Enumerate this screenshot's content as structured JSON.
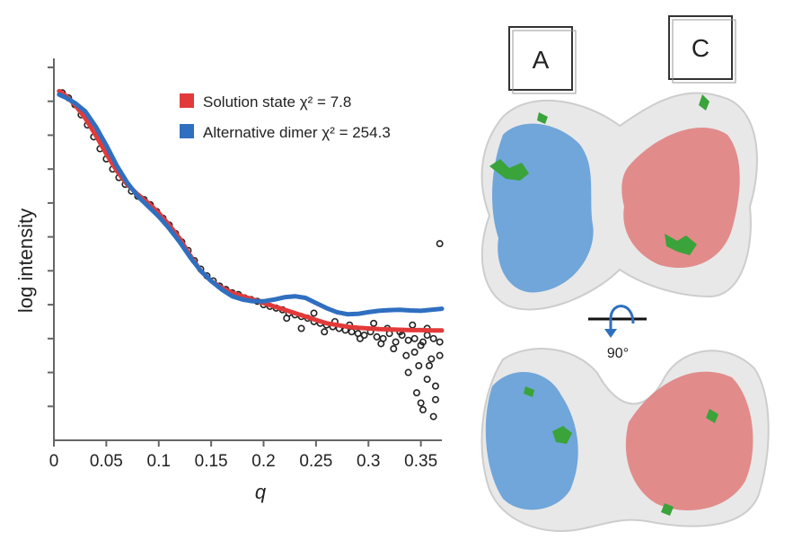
{
  "chart_data": {
    "type": "scatter",
    "xlabel": "q",
    "ylabel": "log intensity",
    "xlim": [
      0,
      0.37
    ],
    "ylim": [
      0,
      11
    ],
    "xticks": [
      "0",
      "0.05",
      "0.1",
      "0.15",
      "0.2",
      "0.25",
      "0.3",
      "0.35"
    ],
    "xtick_values": [
      0,
      0.05,
      0.1,
      0.15,
      0.2,
      0.25,
      0.3,
      0.35
    ],
    "ytick_values": [
      1,
      2,
      3,
      4,
      5,
      6,
      7,
      8,
      9,
      10,
      11
    ],
    "series": [
      {
        "name": "Solution state",
        "chi2": "χ² = 7.8",
        "color": "#e23a3a",
        "x": [
          0.005,
          0.012,
          0.02,
          0.03,
          0.04,
          0.05,
          0.06,
          0.07,
          0.08,
          0.09,
          0.1,
          0.11,
          0.12,
          0.13,
          0.14,
          0.15,
          0.16,
          0.17,
          0.18,
          0.19,
          0.2,
          0.21,
          0.22,
          0.23,
          0.24,
          0.25,
          0.26,
          0.27,
          0.28,
          0.29,
          0.3,
          0.31,
          0.32,
          0.33,
          0.34,
          0.35,
          0.36,
          0.37
        ],
        "y": [
          10.3,
          10.15,
          9.9,
          9.5,
          9.0,
          8.45,
          7.95,
          7.55,
          7.25,
          7.0,
          6.7,
          6.35,
          5.95,
          5.45,
          5.0,
          4.7,
          4.5,
          4.35,
          4.25,
          4.15,
          4.05,
          3.95,
          3.85,
          3.75,
          3.65,
          3.55,
          3.45,
          3.4,
          3.35,
          3.32,
          3.3,
          3.28,
          3.27,
          3.26,
          3.25,
          3.25,
          3.24,
          3.24
        ]
      },
      {
        "name": "Alternative dimer",
        "chi2": "χ² = 254.3",
        "color": "#2f6fc0",
        "x": [
          0.005,
          0.012,
          0.02,
          0.03,
          0.04,
          0.05,
          0.06,
          0.07,
          0.08,
          0.09,
          0.1,
          0.11,
          0.12,
          0.13,
          0.14,
          0.15,
          0.16,
          0.17,
          0.18,
          0.19,
          0.2,
          0.21,
          0.22,
          0.23,
          0.24,
          0.25,
          0.26,
          0.27,
          0.28,
          0.29,
          0.3,
          0.31,
          0.32,
          0.33,
          0.34,
          0.35,
          0.36,
          0.37
        ],
        "y": [
          10.2,
          10.1,
          9.95,
          9.7,
          9.25,
          8.7,
          8.1,
          7.6,
          7.2,
          6.9,
          6.6,
          6.25,
          5.85,
          5.4,
          5.0,
          4.7,
          4.45,
          4.25,
          4.15,
          4.1,
          4.1,
          4.15,
          4.22,
          4.25,
          4.2,
          4.05,
          3.9,
          3.78,
          3.72,
          3.73,
          3.78,
          3.82,
          3.84,
          3.85,
          3.83,
          3.82,
          3.85,
          3.88
        ]
      }
    ],
    "scatter_points": {
      "name": "experimental",
      "color": "#222222",
      "x": [
        0.008,
        0.014,
        0.02,
        0.026,
        0.032,
        0.038,
        0.044,
        0.05,
        0.056,
        0.062,
        0.068,
        0.074,
        0.08,
        0.086,
        0.092,
        0.098,
        0.104,
        0.11,
        0.116,
        0.122,
        0.128,
        0.134,
        0.14,
        0.146,
        0.152,
        0.158,
        0.164,
        0.17,
        0.176,
        0.182,
        0.188,
        0.194,
        0.2,
        0.206,
        0.212,
        0.218,
        0.224,
        0.23,
        0.236,
        0.242,
        0.248,
        0.254,
        0.26,
        0.266,
        0.272,
        0.278,
        0.284,
        0.29,
        0.296,
        0.302,
        0.308,
        0.314,
        0.32,
        0.326,
        0.332,
        0.338,
        0.344,
        0.35,
        0.356,
        0.362,
        0.368,
        0.222,
        0.236,
        0.248,
        0.258,
        0.268,
        0.282,
        0.292,
        0.305,
        0.312,
        0.318,
        0.324,
        0.33,
        0.336,
        0.342,
        0.348,
        0.352,
        0.356,
        0.36,
        0.364,
        0.368,
        0.338,
        0.346,
        0.352,
        0.358,
        0.364,
        0.368,
        0.344,
        0.35,
        0.356,
        0.362
      ],
      "y": [
        10.25,
        10.1,
        9.9,
        9.6,
        9.3,
        8.95,
        8.6,
        8.3,
        8.0,
        7.75,
        7.55,
        7.35,
        7.2,
        7.1,
        6.95,
        6.75,
        6.55,
        6.35,
        6.1,
        5.85,
        5.6,
        5.3,
        5.05,
        4.85,
        4.7,
        4.55,
        4.45,
        4.35,
        4.3,
        4.2,
        4.15,
        4.1,
        4.0,
        3.95,
        3.9,
        3.85,
        3.75,
        3.7,
        3.65,
        3.6,
        3.5,
        3.45,
        3.4,
        3.35,
        3.3,
        3.25,
        3.2,
        3.15,
        3.1,
        3.2,
        3.05,
        3.0,
        3.15,
        2.9,
        3.1,
        2.95,
        3.0,
        2.8,
        3.1,
        3.0,
        2.9,
        3.6,
        3.3,
        3.75,
        3.2,
        3.5,
        3.4,
        3.0,
        3.45,
        2.85,
        3.3,
        2.7,
        3.2,
        2.5,
        3.4,
        2.2,
        2.9,
        1.8,
        2.4,
        1.6,
        2.5,
        2.0,
        1.4,
        0.9,
        2.2,
        1.2,
        5.8,
        2.6,
        1.1,
        3.3,
        0.7
      ]
    }
  },
  "legend": {
    "items": [
      {
        "label": "Solution state χ² = 7.8",
        "color": "#e23a3a"
      },
      {
        "label": "Alternative dimer χ² = 254.3",
        "color": "#2f6fc0"
      }
    ]
  },
  "structure": {
    "label_a": "A",
    "label_c": "C",
    "rotation": "90°",
    "colors": {
      "chain_a": "#5b9ad6",
      "chain_c": "#e07a7a",
      "ligand": "#3aa33a",
      "envelope": "#d9d9d9"
    }
  }
}
